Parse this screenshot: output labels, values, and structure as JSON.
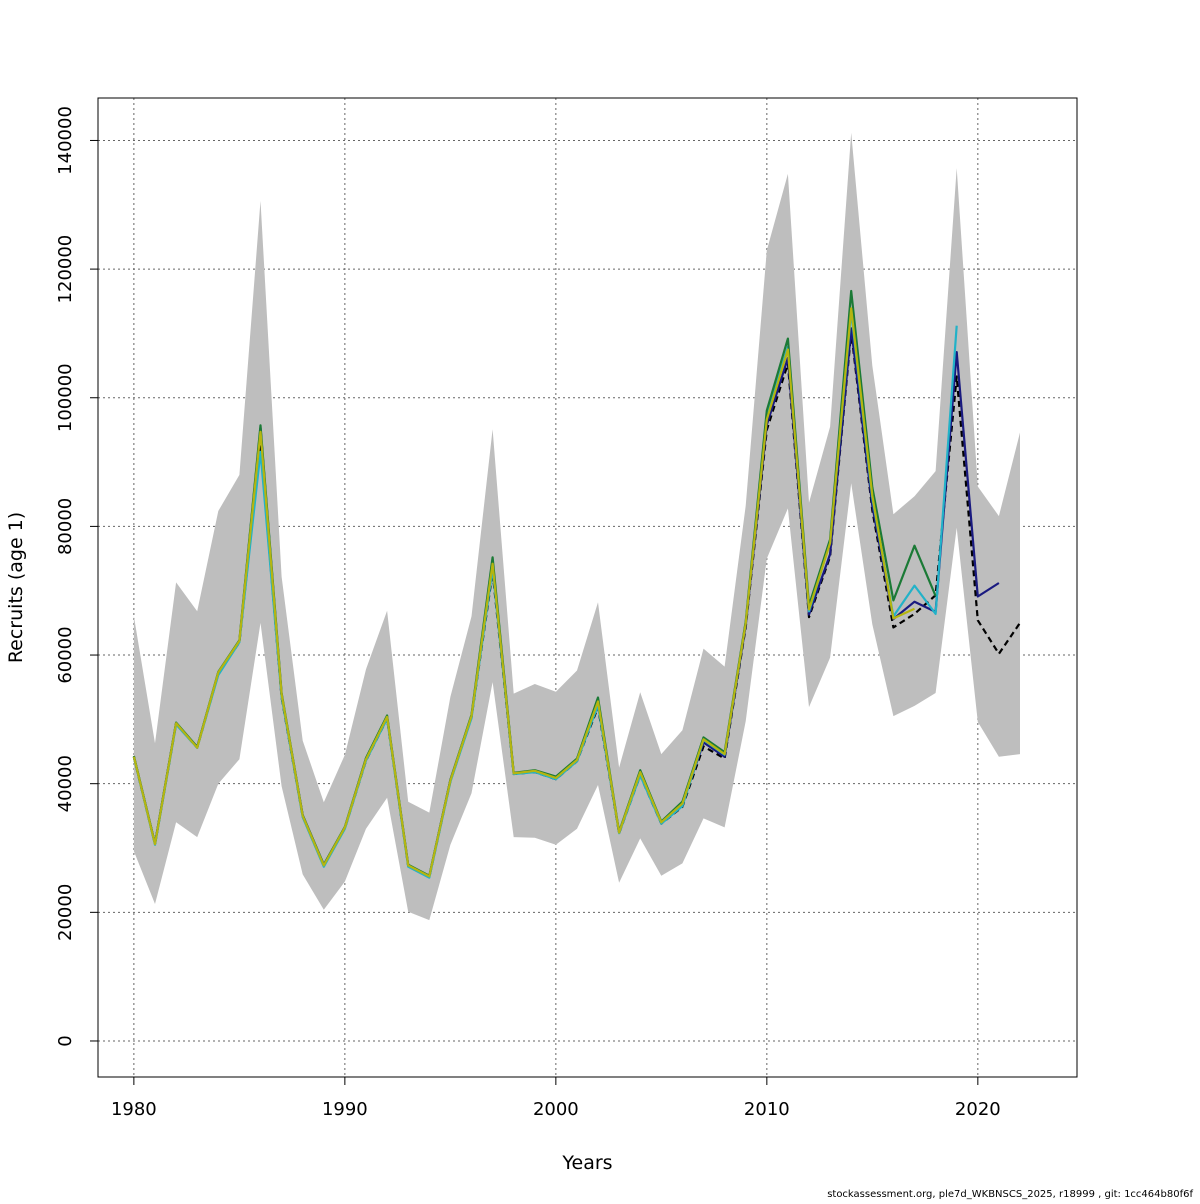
{
  "chart_data": {
    "type": "line",
    "title": "",
    "xlabel": "Years",
    "ylabel": "Recruits (age 1)",
    "footer": "stockassessment.org, ple7d_WKBNSCS_2025, r18999 , git: 1cc464b80f6f",
    "xlim": [
      1978.3,
      2024.7
    ],
    "ylim": [
      -5600,
      146600
    ],
    "xticks": [
      1980,
      1990,
      2000,
      2010,
      2020
    ],
    "yticks": [
      0,
      20000,
      40000,
      60000,
      80000,
      100000,
      120000,
      140000
    ],
    "grid": true,
    "legend": "none",
    "band": {
      "color": "#bebebe",
      "x": [
        1980,
        1981,
        1982,
        1983,
        1984,
        1985,
        1986,
        1987,
        1988,
        1989,
        1990,
        1991,
        1992,
        1993,
        1994,
        1995,
        1996,
        1997,
        1998,
        1999,
        2000,
        2001,
        2002,
        2003,
        2004,
        2005,
        2006,
        2007,
        2008,
        2009,
        2010,
        2011,
        2012,
        2013,
        2014,
        2015,
        2016,
        2017,
        2018,
        2019,
        2020,
        2021,
        2022
      ],
      "lower": [
        29500,
        21300,
        34000,
        31700,
        40000,
        43800,
        65000,
        39600,
        25900,
        20400,
        24800,
        33000,
        37800,
        20100,
        18800,
        30500,
        38500,
        55800,
        31700,
        31600,
        30500,
        33000,
        39800,
        24600,
        31500,
        25700,
        27600,
        34600,
        33200,
        49700,
        75000,
        82800,
        51900,
        59600,
        86700,
        64800,
        50500,
        52100,
        54100,
        79800,
        49600,
        44200,
        44600
      ],
      "upper": [
        66000,
        46300,
        71300,
        66800,
        82400,
        88000,
        130600,
        72200,
        46700,
        37100,
        44500,
        57800,
        66900,
        37200,
        35500,
        53500,
        66000,
        95100,
        54000,
        55500,
        54300,
        57600,
        68200,
        42500,
        54200,
        44600,
        48300,
        61000,
        58200,
        83200,
        122900,
        134800,
        83700,
        95500,
        141200,
        105000,
        81900,
        84700,
        88600,
        135700,
        86200,
        81600,
        94600
      ]
    },
    "series": [
      {
        "color": "#000000",
        "dashed": true,
        "x": [
          1980,
          1981,
          1982,
          1983,
          1984,
          1985,
          1986,
          1987,
          1988,
          1989,
          1990,
          1991,
          1992,
          1993,
          1994,
          1995,
          1996,
          1997,
          1998,
          1999,
          2000,
          2001,
          2002,
          2003,
          2004,
          2005,
          2006,
          2007,
          2008,
          2009,
          2010,
          2011,
          2012,
          2013,
          2014,
          2015,
          2016,
          2017,
          2018,
          2019,
          2020,
          2021,
          2022
        ],
        "values": [
          44100,
          30600,
          49300,
          45600,
          57100,
          62000,
          92600,
          53400,
          34900,
          27200,
          33100,
          43600,
          50100,
          27200,
          25500,
          40400,
          50300,
          72900,
          41500,
          41800,
          40700,
          43500,
          51900,
          32300,
          41300,
          33800,
          36400,
          45800,
          43900,
          64300,
          95000,
          105300,
          65900,
          75300,
          110200,
          82500,
          64300,
          66400,
          69300,
          103300,
          65400,
          60200,
          65000
        ]
      },
      {
        "color": "#1a1a80",
        "dashed": false,
        "x": [
          1980,
          1981,
          1982,
          1983,
          1984,
          1985,
          1986,
          1987,
          1988,
          1989,
          1990,
          1991,
          1992,
          1993,
          1994,
          1995,
          1996,
          1997,
          1998,
          1999,
          2000,
          2001,
          2002,
          2003,
          2004,
          2005,
          2006,
          2007,
          2008,
          2009,
          2010,
          2011,
          2012,
          2013,
          2014,
          2015,
          2016,
          2017,
          2018,
          2019,
          2020,
          2021
        ],
        "values": [
          44200,
          30700,
          49400,
          45700,
          57200,
          62100,
          95300,
          53800,
          35100,
          27400,
          33200,
          43900,
          50400,
          27300,
          25600,
          40600,
          50500,
          74600,
          41600,
          41900,
          40900,
          43800,
          52400,
          32400,
          41600,
          33900,
          36800,
          46400,
          44200,
          64600,
          95800,
          106200,
          66300,
          75700,
          110800,
          83200,
          65600,
          68300,
          66700,
          107100,
          69100,
          71200
        ]
      },
      {
        "color": "#22b2c8",
        "dashed": false,
        "x": [
          1980,
          1981,
          1982,
          1983,
          1984,
          1985,
          1986,
          1987,
          1988,
          1989,
          1990,
          1991,
          1992,
          1993,
          1994,
          1995,
          1996,
          1997,
          1998,
          1999,
          2000,
          2001,
          2002,
          2003,
          2004,
          2005,
          2006,
          2007,
          2008,
          2009,
          2010,
          2011,
          2012,
          2013,
          2014,
          2015,
          2016,
          2017,
          2018,
          2019
        ],
        "values": [
          44100,
          30500,
          49200,
          45600,
          56900,
          62000,
          91600,
          53500,
          34800,
          27100,
          33000,
          43600,
          50100,
          27100,
          25400,
          40300,
          50200,
          73400,
          41500,
          41800,
          40700,
          43500,
          52200,
          32300,
          41300,
          33800,
          36500,
          46800,
          44500,
          65000,
          97100,
          107900,
          66800,
          77600,
          113400,
          84400,
          66000,
          70800,
          66400,
          111200
        ]
      },
      {
        "color": "#1b7a36",
        "dashed": false,
        "x": [
          1980,
          1981,
          1982,
          1983,
          1984,
          1985,
          1986,
          1987,
          1988,
          1989,
          1990,
          1991,
          1992,
          1993,
          1994,
          1995,
          1996,
          1997,
          1998,
          1999,
          2000,
          2001,
          2002,
          2003,
          2004,
          2005,
          2006,
          2007,
          2008,
          2009,
          2010,
          2011,
          2012,
          2013,
          2014,
          2015,
          2016,
          2017,
          2018
        ],
        "values": [
          44300,
          30700,
          49500,
          45700,
          57400,
          62300,
          95700,
          54100,
          35100,
          27400,
          33300,
          44000,
          50600,
          27400,
          25700,
          40600,
          50700,
          75200,
          41700,
          42100,
          41100,
          43900,
          53400,
          32500,
          42100,
          34100,
          37200,
          47200,
          44900,
          65200,
          98000,
          109200,
          67700,
          78000,
          116600,
          86100,
          68500,
          77000,
          69200
        ]
      },
      {
        "color": "#b5b510",
        "dashed": false,
        "x": [
          1980,
          1981,
          1982,
          1983,
          1984,
          1985,
          1986,
          1987,
          1988,
          1989,
          1990,
          1991,
          1992,
          1993,
          1994,
          1995,
          1996,
          1997,
          1998,
          1999,
          2000,
          2001,
          2002,
          2003,
          2004,
          2005,
          2006,
          2007,
          2008,
          2009,
          2010,
          2011,
          2012,
          2013,
          2014,
          2015,
          2016,
          2017
        ],
        "values": [
          44200,
          30600,
          49400,
          45600,
          57300,
          62200,
          94700,
          53900,
          35000,
          27300,
          33200,
          43800,
          50400,
          27300,
          25600,
          40500,
          50500,
          74200,
          41600,
          42000,
          40900,
          43700,
          52800,
          32400,
          41800,
          34000,
          36900,
          46900,
          44600,
          64900,
          96600,
          107500,
          67100,
          77400,
          113900,
          84800,
          65700,
          67200
        ]
      }
    ]
  }
}
